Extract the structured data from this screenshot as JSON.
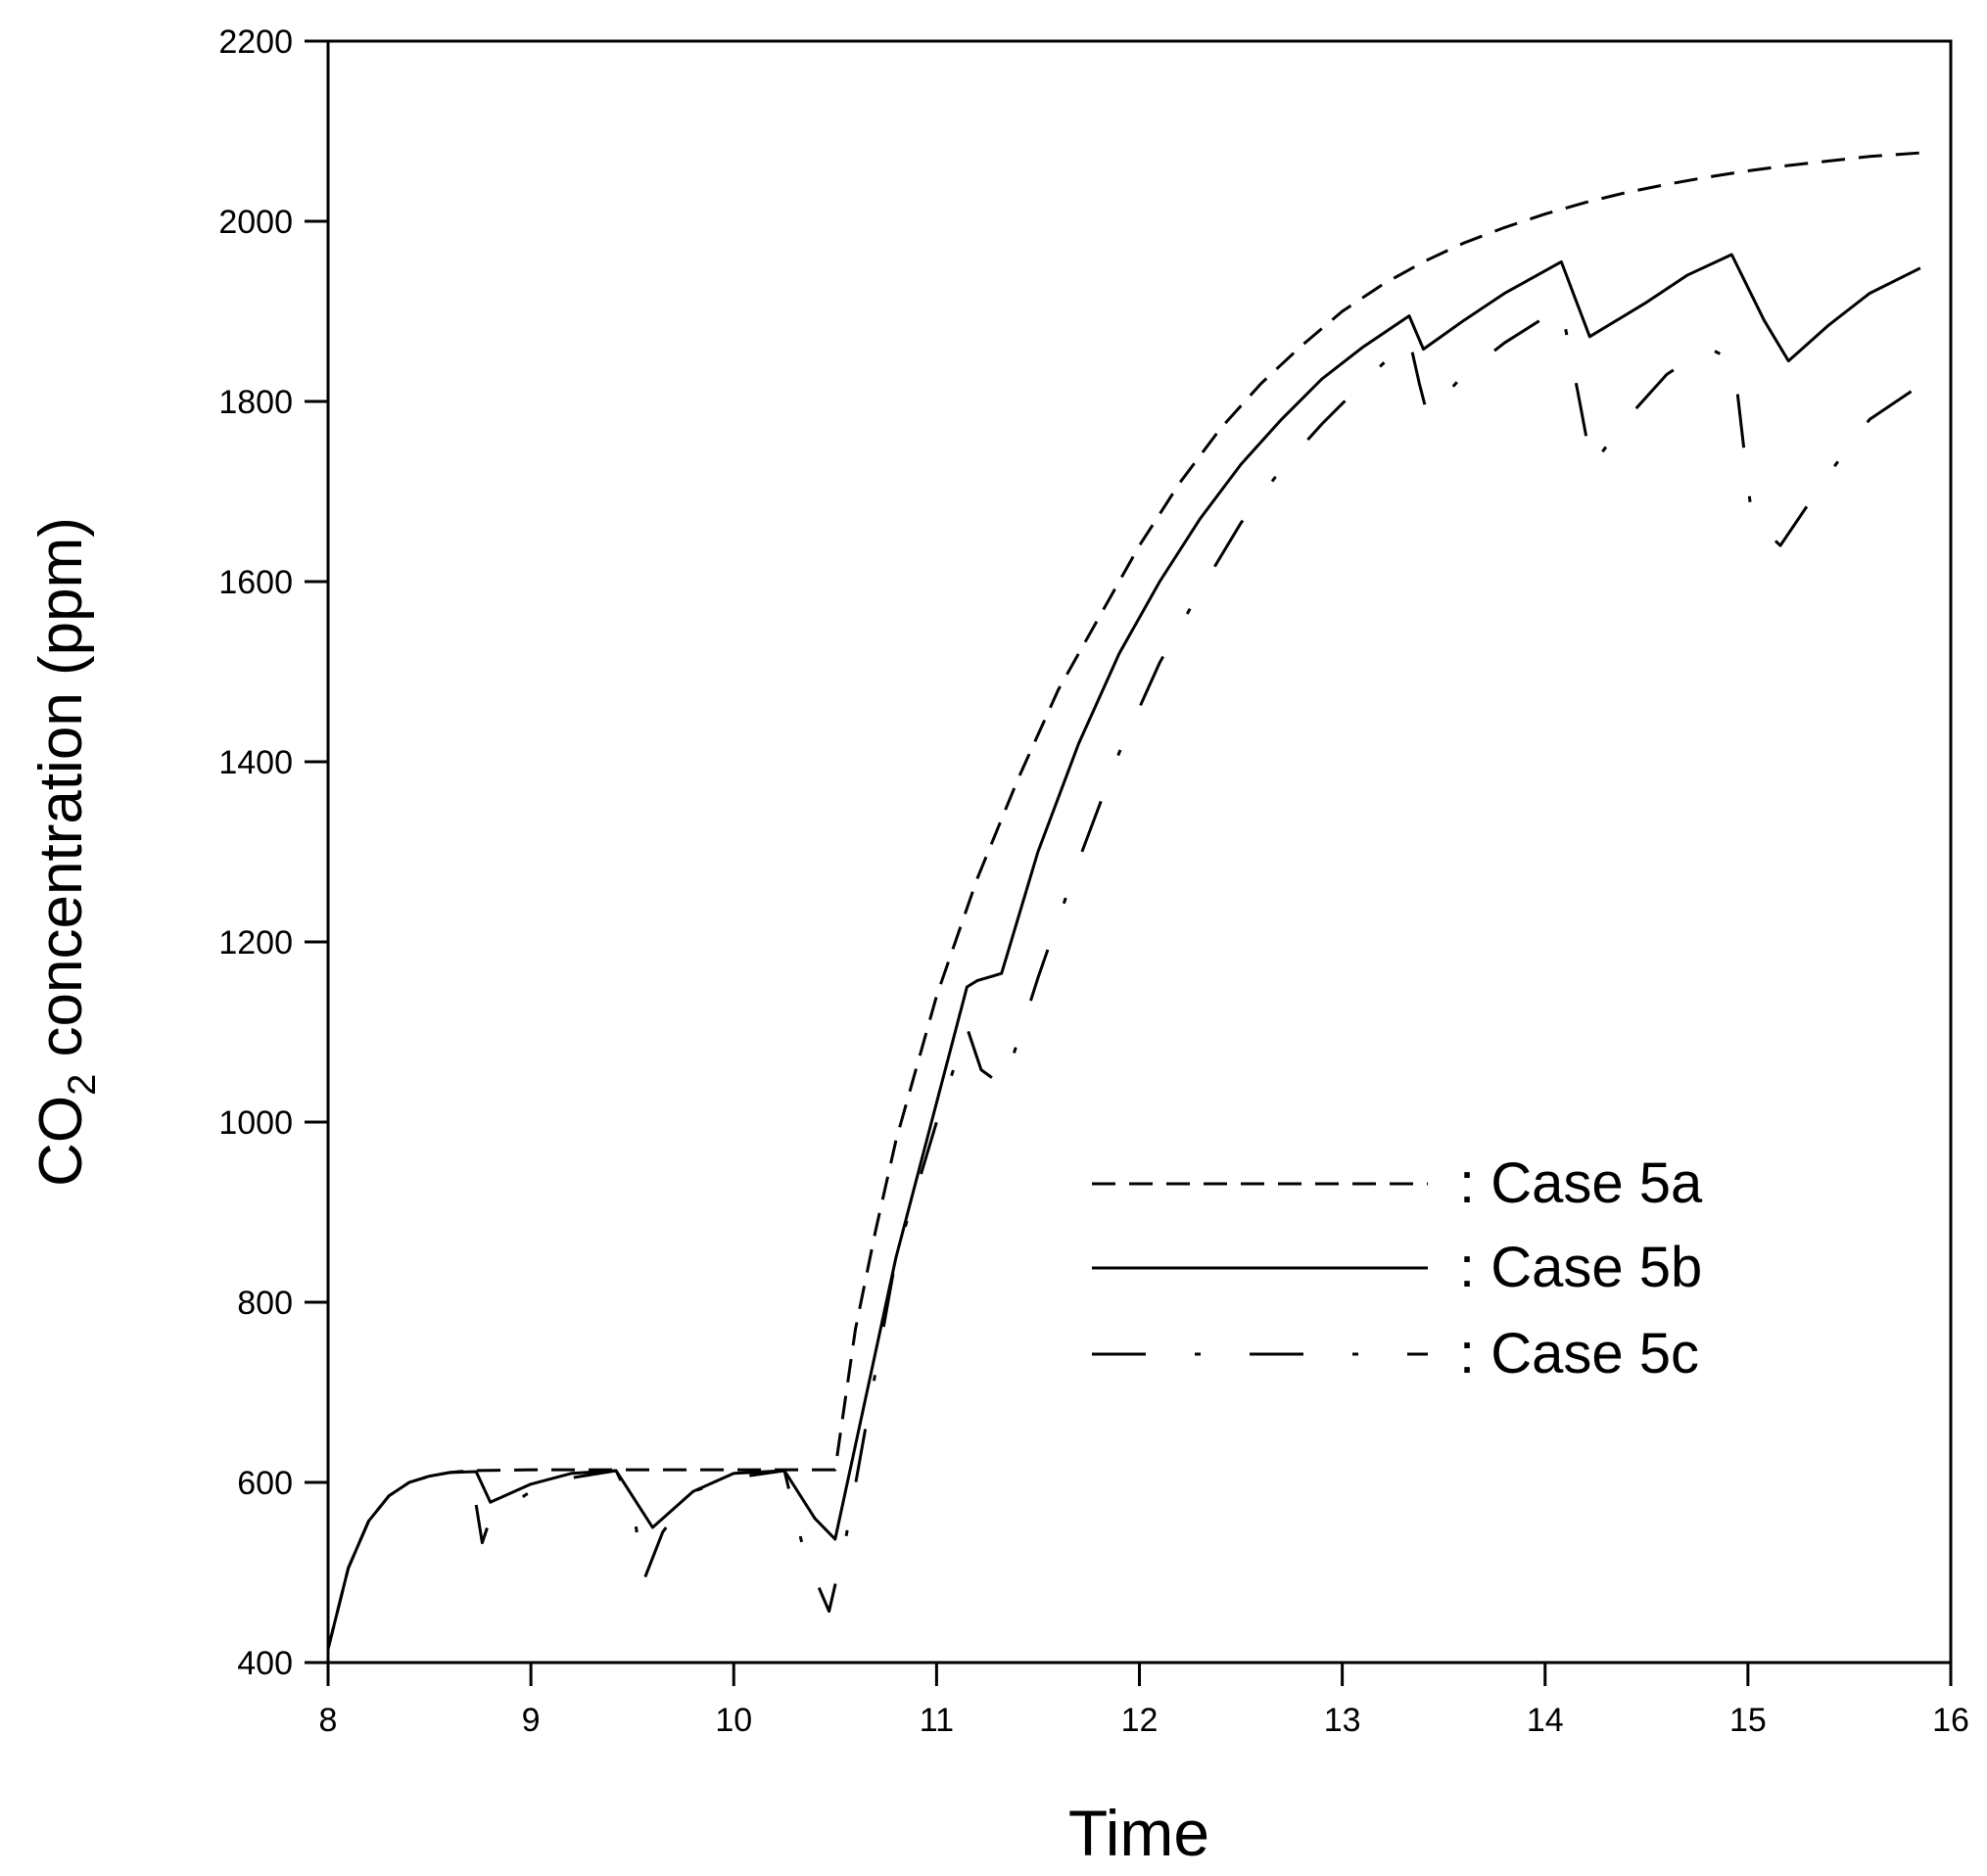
{
  "chart_data": {
    "type": "line",
    "title": "",
    "xlabel": "Time",
    "ylabel_main": "CO",
    "ylabel_sub": "2",
    "ylabel_rest": " concentration (ppm)",
    "xlim": [
      8,
      16
    ],
    "ylim": [
      400,
      2200
    ],
    "xticks": [
      8,
      9,
      10,
      11,
      12,
      13,
      14,
      15,
      16
    ],
    "yticks": [
      400,
      600,
      800,
      1000,
      1200,
      1400,
      1600,
      1800,
      2000,
      2200
    ],
    "grid": false,
    "legend_position": "center-right",
    "series": [
      {
        "name": ": Case 5a",
        "dash": "dash",
        "x": [
          8.0,
          8.1,
          8.2,
          8.3,
          8.4,
          8.5,
          8.6,
          8.7,
          9.0,
          9.5,
          10.0,
          10.5,
          10.6,
          10.7,
          10.8,
          10.9,
          11.0,
          11.2,
          11.4,
          11.6,
          11.8,
          12.0,
          12.2,
          12.4,
          12.6,
          12.8,
          13.0,
          13.2,
          13.4,
          13.6,
          13.8,
          14.0,
          14.2,
          14.4,
          14.6,
          14.8,
          15.0,
          15.2,
          15.4,
          15.6,
          15.85
        ],
        "y": [
          415,
          505,
          557,
          585,
          600,
          607,
          611,
          613,
          614,
          614,
          614,
          614,
          770,
          880,
          980,
          1060,
          1140,
          1270,
          1380,
          1480,
          1560,
          1640,
          1710,
          1770,
          1820,
          1862,
          1900,
          1930,
          1955,
          1976,
          1993,
          2008,
          2021,
          2032,
          2041,
          2049,
          2056,
          2062,
          2067,
          2072,
          2076
        ]
      },
      {
        "name": ": Case 5b",
        "dash": "solid",
        "x": [
          8.0,
          8.1,
          8.2,
          8.3,
          8.4,
          8.5,
          8.6,
          8.73,
          8.8,
          9.0,
          9.2,
          9.42,
          9.6,
          9.8,
          10.0,
          10.25,
          10.4,
          10.5,
          10.8,
          11.15,
          11.2,
          11.32,
          11.5,
          11.7,
          11.9,
          12.1,
          12.3,
          12.5,
          12.7,
          12.9,
          13.1,
          13.33,
          13.4,
          13.6,
          13.8,
          14.08,
          14.22,
          14.5,
          14.7,
          14.92,
          15.08,
          15.2,
          15.4,
          15.6,
          15.85
        ],
        "y": [
          415,
          505,
          557,
          585,
          600,
          607,
          611,
          612,
          578,
          598,
          610,
          613,
          550,
          590,
          610,
          613,
          560,
          537,
          850,
          1150,
          1157,
          1165,
          1300,
          1420,
          1520,
          1600,
          1670,
          1730,
          1780,
          1825,
          1860,
          1895,
          1858,
          1890,
          1920,
          1955,
          1872,
          1910,
          1940,
          1963,
          1890,
          1845,
          1885,
          1920,
          1948
        ]
      },
      {
        "name": ": Case 5c",
        "dash": "dashdot",
        "x": [
          8.73,
          8.76,
          8.8,
          9.0,
          9.2,
          9.42,
          9.5,
          9.56,
          9.65,
          9.8,
          10.0,
          10.25,
          10.35,
          10.47,
          10.55,
          10.8,
          11.0,
          11.15,
          11.22,
          11.33,
          11.5,
          11.7,
          11.9,
          12.1,
          12.3,
          12.5,
          12.7,
          12.9,
          13.1,
          13.33,
          13.38,
          13.42,
          13.6,
          13.8,
          14.08,
          14.17,
          14.23,
          14.4,
          14.6,
          14.8,
          14.93,
          15.02,
          15.16,
          15.4,
          15.6,
          15.85
        ],
        "y": [
          575,
          533,
          560,
          590,
          605,
          613,
          575,
          493,
          545,
          590,
          605,
          613,
          520,
          457,
          535,
          850,
          1000,
          1105,
          1058,
          1040,
          1160,
          1290,
          1410,
          1510,
          1590,
          1665,
          1725,
          1775,
          1820,
          1870,
          1820,
          1785,
          1830,
          1865,
          1905,
          1800,
          1728,
          1780,
          1830,
          1860,
          1845,
          1670,
          1640,
          1720,
          1780,
          1818
        ]
      }
    ]
  }
}
